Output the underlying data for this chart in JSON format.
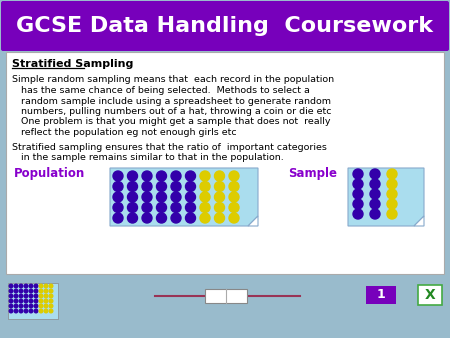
{
  "title": "GCSE Data Handling  Coursework",
  "title_bg": "#7700bb",
  "title_color": "#ffffff",
  "slide_bg": "#99bbcc",
  "content_bg": "#ffffff",
  "content_border": "#aaaaaa",
  "heading": "Stratified Sampling",
  "lines_para1": [
    "Simple random sampling means that  each record in the population",
    "   has the same chance of being selected.  Methods to select a",
    "   random sample include using a spreadsheet to generate random",
    "   numbers, pulling numbers out of a hat, throwing a coin or die etc",
    "   One problem is that you might get a sample that does not  really",
    "   reflect the population eg not enough girls etc"
  ],
  "lines_para2": [
    "Stratified sampling ensures that the ratio of  important categories",
    "   in the sample remains similar to that in the population."
  ],
  "pop_label": "Population",
  "pop_label_color": "#8800cc",
  "sample_label": "Sample",
  "sample_label_color": "#8800cc",
  "dot_purple": "#3300aa",
  "dot_yellow": "#ddcc00",
  "box_bg": "#aaddee",
  "box_border": "#88aacc",
  "page_num": "1",
  "page_num_bg": "#7700bb",
  "page_num_color": "#ffffff",
  "bottom_bg": "#99bbcc"
}
